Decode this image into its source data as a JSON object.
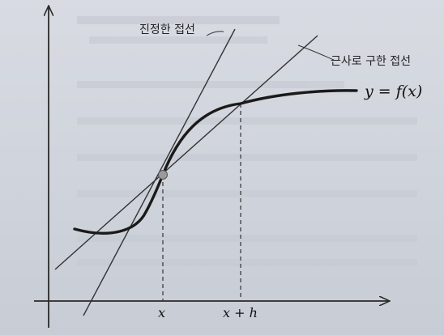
{
  "labels": {
    "true_tangent": "진정한 접선",
    "approx_tangent": "근사로 구한 접선",
    "function": "y = f(x)",
    "tick_x": "x",
    "tick_x_plus_h": "x + h"
  },
  "colors": {
    "ink": "#2a2a2a",
    "curve": "#1a1a1a",
    "point_fill": "#9a9a9a"
  }
}
